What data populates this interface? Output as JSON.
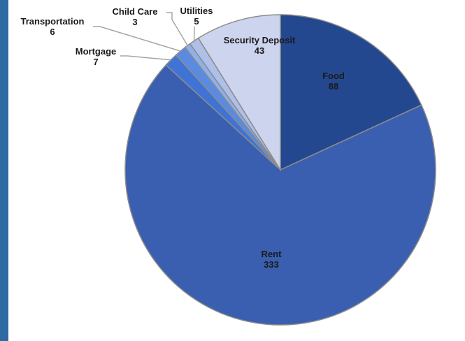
{
  "colors": {
    "background_frame": "#2e6aa3",
    "panel": "#ffffff",
    "food": "#24488f",
    "rent": "#3a5fb0",
    "mortgage": "#3f74d6",
    "transportation": "#5b8be0",
    "child_care": "#8fb0ea",
    "utilities": "#aebfe8",
    "security_deposit": "#cdd5ee",
    "leader_line": "#a6a6a6",
    "slice_border": "#8c8c8c"
  },
  "chart_data": {
    "type": "pie",
    "title": "",
    "slices": [
      {
        "name": "Food",
        "value": 88
      },
      {
        "name": "Rent",
        "value": 333
      },
      {
        "name": "Mortgage",
        "value": 7
      },
      {
        "name": "Transportation",
        "value": 6
      },
      {
        "name": "Child Care",
        "value": 3
      },
      {
        "name": "Utilities",
        "value": 5
      },
      {
        "name": "Security Deposit",
        "value": 43
      }
    ],
    "start_angle": "12 o'clock",
    "direction": "clockwise",
    "legend": "none",
    "data_labels": "name and value"
  }
}
